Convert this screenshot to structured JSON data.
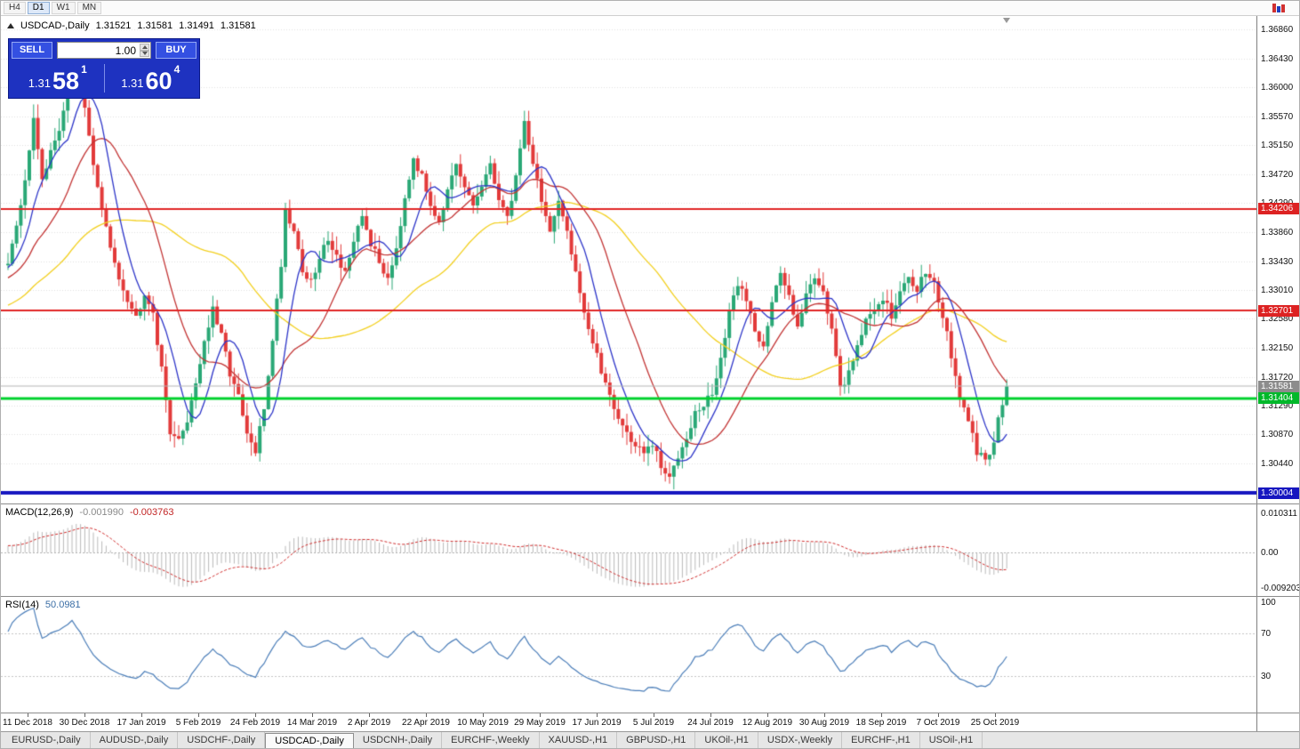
{
  "colors": {
    "candle_up": "#2aa876",
    "candle_down": "#e23a3a",
    "ma_fast_blue": "#2c34c8",
    "ma_mid_red": "#c23434",
    "ma_slow_yellow": "#f2cf1d",
    "grid": "#e0e0e0",
    "macd_hist": "#b9b9b9",
    "macd_signal": "#cf2b2b",
    "rsi_line": "#4a7db8"
  },
  "toolbar": {
    "timeframes": [
      {
        "label": "H4",
        "active": false
      },
      {
        "label": "D1",
        "active": true
      },
      {
        "label": "W1",
        "active": false
      },
      {
        "label": "MN",
        "active": false
      }
    ]
  },
  "header": {
    "symbol": "USDCAD-,Daily",
    "open": "1.31521",
    "high": "1.31581",
    "low": "1.31491",
    "close": "1.31581"
  },
  "trade_panel": {
    "sell_label": "SELL",
    "buy_label": "BUY",
    "volume": "1.00",
    "sell_price": {
      "prefix": "1.31",
      "pips": "58",
      "point": "1"
    },
    "buy_price": {
      "prefix": "1.31",
      "pips": "60",
      "point": "4"
    }
  },
  "price_axis": {
    "labels": [
      "1.36860",
      "1.36430",
      "1.36000",
      "1.35570",
      "1.35150",
      "1.34720",
      "1.34290",
      "1.33860",
      "1.33430",
      "1.33010",
      "1.32580",
      "1.32150",
      "1.31720",
      "1.31290",
      "1.30870",
      "1.30440"
    ],
    "badges": [
      {
        "name": "resistance-upper",
        "value": "1.34206",
        "price": 1.34206,
        "color": "#dd2222"
      },
      {
        "name": "resistance-lower",
        "value": "1.32701",
        "price": 1.32701,
        "color": "#dd2222"
      },
      {
        "name": "current-price",
        "value": "1.31581",
        "price": 1.31581,
        "color": "#8c8c8c"
      },
      {
        "name": "support-green",
        "value": "1.31404",
        "price": 1.31404,
        "color": "#00b82a"
      },
      {
        "name": "floor-blue",
        "value": "1.30004",
        "price": 1.30004,
        "color": "#1717c0"
      }
    ]
  },
  "hlines": [
    {
      "name": "resistance-upper-line",
      "price": 1.34206,
      "color": "#e02525",
      "width": 2
    },
    {
      "name": "resistance-lower-line",
      "price": 1.32701,
      "color": "#e02525",
      "width": 2
    },
    {
      "name": "current-price-line",
      "price": 1.31581,
      "color": "#b4b4b4",
      "width": 1
    },
    {
      "name": "support-green-line",
      "price": 1.31404,
      "color": "#00d22d",
      "width": 3
    },
    {
      "name": "floor-blue-line",
      "price": 1.30004,
      "color": "#1717c0",
      "width": 4
    }
  ],
  "macd_panel": {
    "title": "MACD(12,26,9)",
    "value_main": "-0.001990",
    "value_signal": "-0.003763",
    "axis": [
      "0.010311",
      "0.00",
      "-0.009203"
    ],
    "axis_values": [
      0.010311,
      0,
      -0.009203
    ],
    "params": {
      "fast": 12,
      "slow": 26,
      "signal": 9
    },
    "ylim": [
      -0.0115,
      0.0126
    ]
  },
  "rsi_panel": {
    "title": "RSI(14)",
    "value": "50.0981",
    "axis": [
      "100",
      "70",
      "30"
    ],
    "axis_values": [
      100,
      70,
      30
    ],
    "period": 14,
    "levels": [
      70,
      30
    ]
  },
  "time_axis": {
    "labels": [
      "11 Dec 2018",
      "30 Dec 2018",
      "17 Jan 2019",
      "5 Feb 2019",
      "24 Feb 2019",
      "14 Mar 2019",
      "2 Apr 2019",
      "22 Apr 2019",
      "10 May 2019",
      "29 May 2019",
      "17 Jun 2019",
      "5 Jul 2019",
      "24 Jul 2019",
      "12 Aug 2019",
      "30 Aug 2019",
      "18 Sep 2019",
      "7 Oct 2019",
      "25 Oct 2019"
    ]
  },
  "tabs": [
    {
      "label": "EURUSD-,Daily",
      "active": false
    },
    {
      "label": "AUDUSD-,Daily",
      "active": false
    },
    {
      "label": "USDCHF-,Daily",
      "active": false
    },
    {
      "label": "USDCAD-,Daily",
      "active": true
    },
    {
      "label": "USDCNH-,Daily",
      "active": false
    },
    {
      "label": "EURCHF-,Weekly",
      "active": false
    },
    {
      "label": "XAUUSD-,H1",
      "active": false
    },
    {
      "label": "GBPUSD-,H1",
      "active": false
    },
    {
      "label": "UKOil-,H1",
      "active": false
    },
    {
      "label": "USDX-,Weekly",
      "active": false
    },
    {
      "label": "EURCHF-,H1",
      "active": false
    },
    {
      "label": "USOil-,H1",
      "active": false
    }
  ],
  "chart_data": {
    "type": "candlestick",
    "symbol": "USDCAD",
    "timeframe": "Daily",
    "ylim": [
      1.29835,
      1.37057
    ],
    "candle_count": 235,
    "last_close": 1.31581,
    "current_bar": {
      "open": 1.31521,
      "high": 1.31581,
      "low": 1.31491,
      "close": 1.31581
    },
    "pre_history": {
      "bars": 60,
      "start": 1.318
    },
    "close_path": [
      [
        0,
        1.3345
      ],
      [
        2,
        1.339
      ],
      [
        4,
        1.3465
      ],
      [
        6,
        1.355
      ],
      [
        8,
        1.347
      ],
      [
        10,
        1.35
      ],
      [
        12,
        1.354
      ],
      [
        14,
        1.36
      ],
      [
        15,
        1.3655
      ],
      [
        17,
        1.3605
      ],
      [
        19,
        1.353
      ],
      [
        21,
        1.345
      ],
      [
        24,
        1.336
      ],
      [
        27,
        1.3305
      ],
      [
        30,
        1.326
      ],
      [
        32,
        1.33
      ],
      [
        34,
        1.327
      ],
      [
        36,
        1.318
      ],
      [
        38,
        1.3095
      ],
      [
        40,
        1.3075
      ],
      [
        42,
        1.311
      ],
      [
        44,
        1.3165
      ],
      [
        46,
        1.3225
      ],
      [
        48,
        1.327
      ],
      [
        50,
        1.323
      ],
      [
        52,
        1.318
      ],
      [
        54,
        1.314
      ],
      [
        56,
        1.3085
      ],
      [
        58,
        1.306
      ],
      [
        60,
        1.3125
      ],
      [
        62,
        1.323
      ],
      [
        64,
        1.334
      ],
      [
        65,
        1.342
      ],
      [
        67,
        1.339
      ],
      [
        69,
        1.333
      ],
      [
        71,
        1.331
      ],
      [
        73,
        1.3345
      ],
      [
        75,
        1.338
      ],
      [
        77,
        1.335
      ],
      [
        79,
        1.333
      ],
      [
        81,
        1.3365
      ],
      [
        83,
        1.341
      ],
      [
        85,
        1.337
      ],
      [
        87,
        1.334
      ],
      [
        89,
        1.332
      ],
      [
        91,
        1.3365
      ],
      [
        93,
        1.344
      ],
      [
        95,
        1.35
      ],
      [
        97,
        1.3465
      ],
      [
        99,
        1.343
      ],
      [
        101,
        1.3405
      ],
      [
        103,
        1.3445
      ],
      [
        105,
        1.348
      ],
      [
        107,
        1.345
      ],
      [
        109,
        1.3425
      ],
      [
        111,
        1.3455
      ],
      [
        113,
        1.348
      ],
      [
        115,
        1.344
      ],
      [
        117,
        1.3405
      ],
      [
        119,
        1.347
      ],
      [
        121,
        1.355
      ],
      [
        123,
        1.349
      ],
      [
        125,
        1.3435
      ],
      [
        127,
        1.3385
      ],
      [
        129,
        1.3425
      ],
      [
        131,
        1.339
      ],
      [
        133,
        1.333
      ],
      [
        135,
        1.327
      ],
      [
        137,
        1.322
      ],
      [
        139,
        1.318
      ],
      [
        141,
        1.315
      ],
      [
        143,
        1.311
      ],
      [
        145,
        1.309
      ],
      [
        147,
        1.307
      ],
      [
        149,
        1.3058
      ],
      [
        151,
        1.3072
      ],
      [
        153,
        1.3038
      ],
      [
        155,
        1.302
      ],
      [
        157,
        1.3058
      ],
      [
        159,
        1.3088
      ],
      [
        161,
        1.3118
      ],
      [
        163,
        1.3128
      ],
      [
        165,
        1.3148
      ],
      [
        167,
        1.32
      ],
      [
        169,
        1.3262
      ],
      [
        171,
        1.3312
      ],
      [
        173,
        1.3288
      ],
      [
        175,
        1.324
      ],
      [
        177,
        1.3222
      ],
      [
        179,
        1.3282
      ],
      [
        181,
        1.3322
      ],
      [
        183,
        1.3292
      ],
      [
        185,
        1.3252
      ],
      [
        187,
        1.3292
      ],
      [
        189,
        1.3322
      ],
      [
        191,
        1.3302
      ],
      [
        193,
        1.3242
      ],
      [
        195,
        1.315
      ],
      [
        197,
        1.318
      ],
      [
        199,
        1.3222
      ],
      [
        201,
        1.3252
      ],
      [
        203,
        1.3272
      ],
      [
        205,
        1.3292
      ],
      [
        207,
        1.3262
      ],
      [
        209,
        1.3292
      ],
      [
        211,
        1.3322
      ],
      [
        213,
        1.3302
      ],
      [
        215,
        1.3332
      ],
      [
        217,
        1.3312
      ],
      [
        219,
        1.3262
      ],
      [
        221,
        1.3202
      ],
      [
        223,
        1.3142
      ],
      [
        225,
        1.3102
      ],
      [
        227,
        1.3062
      ],
      [
        229,
        1.3045
      ],
      [
        231,
        1.3082
      ],
      [
        233,
        1.3132
      ],
      [
        234,
        1.3158
      ]
    ],
    "moving_averages": [
      {
        "period": 8,
        "color_key": "ma_fast_blue"
      },
      {
        "period": 20,
        "color_key": "ma_mid_red"
      },
      {
        "period": 50,
        "color_key": "ma_slow_yellow"
      }
    ],
    "key_levels": {
      "resistance": [
        1.34206,
        1.32701
      ],
      "support": [
        1.31404
      ],
      "floor": [
        1.30004
      ],
      "current": 1.31581
    }
  }
}
